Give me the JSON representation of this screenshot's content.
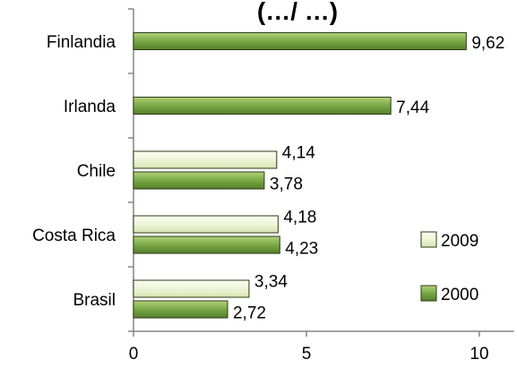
{
  "chart_data": {
    "type": "bar",
    "orientation": "horizontal",
    "title": "(…/ …)",
    "categories": [
      "Finlandia",
      "Irlanda",
      "Chile",
      "Costa Rica",
      "Brasil"
    ],
    "series": [
      {
        "name": "2009",
        "color": "#eef4d8",
        "values": [
          null,
          null,
          4.14,
          4.18,
          3.34
        ],
        "labels": [
          "",
          "",
          "4,14",
          "4,18",
          "3,34"
        ]
      },
      {
        "name": "2000",
        "color": "#77a844",
        "values": [
          9.62,
          7.44,
          3.78,
          4.23,
          2.72
        ],
        "labels": [
          "9,62",
          "7,44",
          "3,78",
          "4,23",
          "2,72"
        ]
      }
    ],
    "xlim": [
      0,
      11
    ],
    "xticks": [
      0,
      5,
      10
    ],
    "xtick_labels": [
      "0",
      "5",
      "10"
    ],
    "grid": false,
    "legend_position": "bottom-right"
  }
}
